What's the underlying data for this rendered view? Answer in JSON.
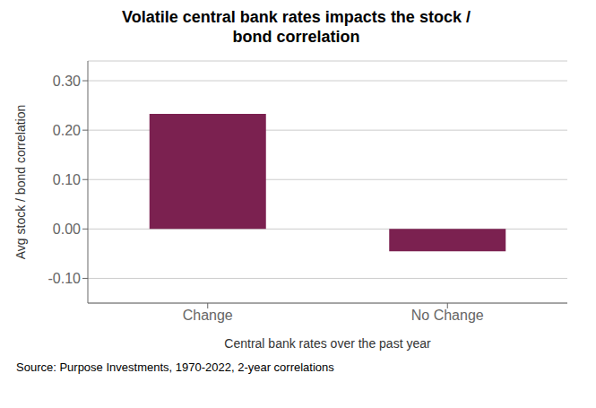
{
  "chart_data": {
    "type": "bar",
    "title": "Volatile central bank rates impacts the stock /\nbond correlation",
    "categories": [
      "Change",
      "No Change"
    ],
    "values": [
      0.233,
      -0.045
    ],
    "color": "#7B2150",
    "xlabel": "Central bank rates over the past year",
    "ylabel": "Avg stock / bond correlation",
    "ylim": [
      -0.15,
      0.34
    ],
    "yticks": [
      {
        "value": -0.1,
        "label": "-0.10"
      },
      {
        "value": 0.0,
        "label": "0.00"
      },
      {
        "value": 0.1,
        "label": "0.10"
      },
      {
        "value": 0.2,
        "label": "0.20"
      },
      {
        "value": 0.3,
        "label": "0.30"
      }
    ],
    "grid": true,
    "annotations": [
      "Source: Purpose Investments, 1970-2022, 2-year correlations"
    ]
  }
}
